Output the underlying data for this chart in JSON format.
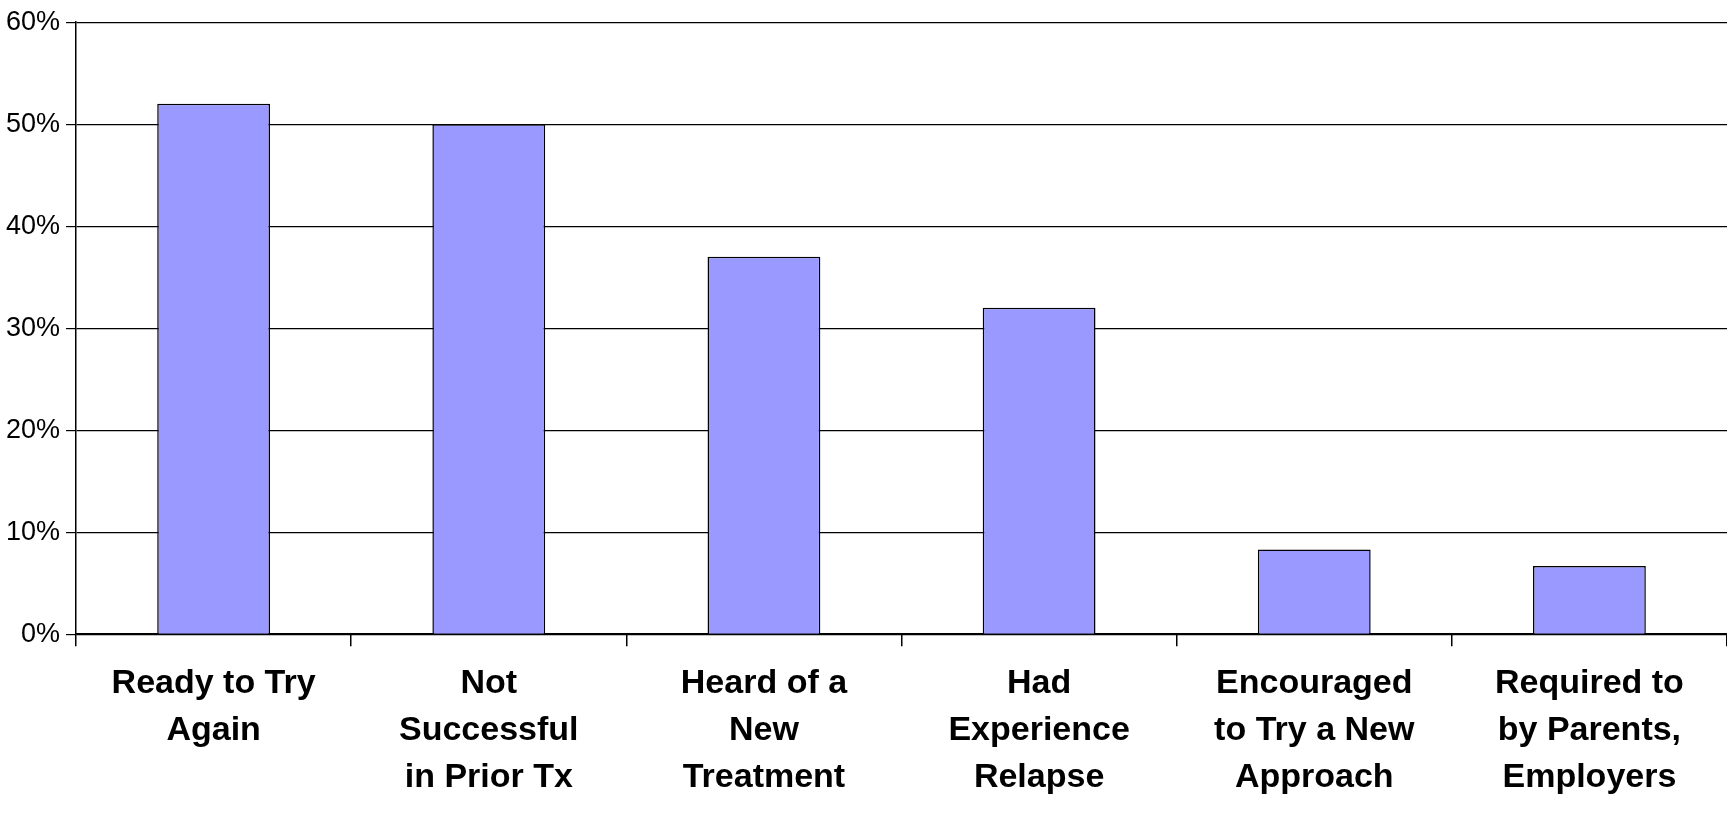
{
  "chart_data": {
    "type": "bar",
    "categories": [
      "Ready to Try Again",
      "Not Successful in Prior Tx",
      "Heard of a New Treatment",
      "Had Experience Relapse",
      "Encouraged to Try a New Approach",
      "Required to by Parents, Employers"
    ],
    "values": [
      52,
      50,
      37,
      32,
      8.3,
      6.7
    ],
    "color": "#9999ff",
    "ylim": [
      0,
      60
    ],
    "yticks": [
      {
        "value": 0,
        "label": "0%"
      },
      {
        "value": 10,
        "label": "10%"
      },
      {
        "value": 20,
        "label": "20%"
      },
      {
        "value": 30,
        "label": "30%"
      },
      {
        "value": 40,
        "label": "40%"
      },
      {
        "value": 50,
        "label": "50%"
      },
      {
        "value": 60,
        "label": "60%"
      }
    ],
    "grid": "y",
    "legend": false
  }
}
